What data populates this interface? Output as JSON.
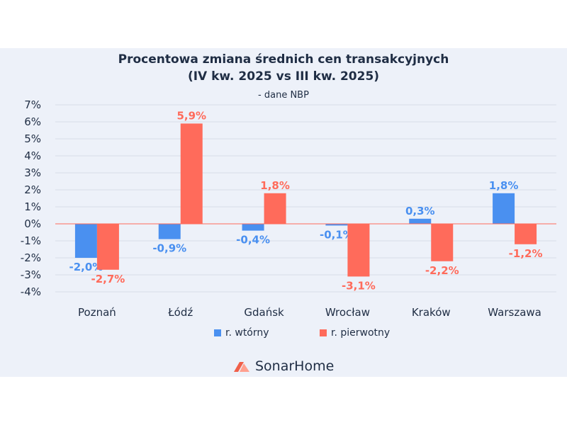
{
  "chart_data": {
    "type": "bar",
    "title": "Procentowa zmiana średnich cen transakcyjnych",
    "title_line2": "(IV kw. 2025 vs III kw. 2025)",
    "subtitle": "- dane NBP",
    "categories": [
      "Poznań",
      "Łódź",
      "Gdańsk",
      "Wrocław",
      "Kraków",
      "Warszawa"
    ],
    "series": [
      {
        "name": "r. wtórny",
        "color": "#4a90f0",
        "values": [
          -2.0,
          -0.9,
          -0.4,
          -0.1,
          0.3,
          1.8
        ],
        "labels": [
          "-2,0%",
          "-0,9%",
          "-0,4%",
          "-0,1%",
          "0,3%",
          "1,8%"
        ]
      },
      {
        "name": "r. pierwotny",
        "color": "#ff6b5b",
        "values": [
          -2.7,
          5.9,
          1.8,
          -3.1,
          -2.2,
          -1.2
        ],
        "labels": [
          "-2,7%",
          "5,9%",
          "1,8%",
          "-3,1%",
          "-2,2%",
          "-1,2%"
        ]
      }
    ],
    "yticks": [
      "7%",
      "6%",
      "5%",
      "4%",
      "3%",
      "2%",
      "1%",
      "0%",
      "-1%",
      "-2%",
      "-3%",
      "-4%"
    ],
    "ylim": [
      -4,
      7
    ],
    "xlabel": "",
    "ylabel": "",
    "grid": true,
    "legend": "bottom"
  },
  "brand": "SonarHome"
}
